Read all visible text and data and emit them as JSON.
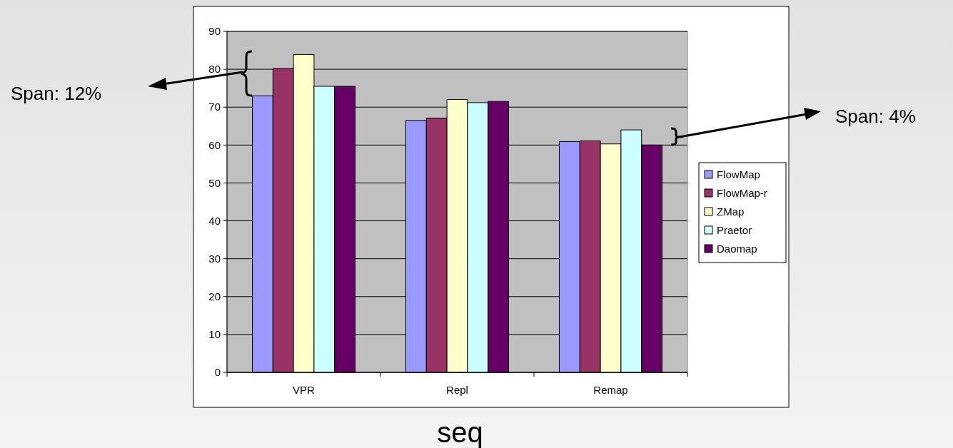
{
  "chart_data": {
    "type": "bar",
    "categories": [
      "VPR",
      "Repl",
      "Remap"
    ],
    "xlabel": "seq",
    "series": [
      {
        "name": "FlowMap",
        "color": "#9999ff",
        "values": [
          73.0,
          66.5,
          60.9
        ]
      },
      {
        "name": "FlowMap-r",
        "color": "#993366",
        "values": [
          80.2,
          67.1,
          61.1
        ]
      },
      {
        "name": "ZMap",
        "color": "#ffffcc",
        "values": [
          83.9,
          72.0,
          60.3
        ]
      },
      {
        "name": "Praetor",
        "color": "#ccffff",
        "values": [
          75.5,
          71.2,
          64.0
        ]
      },
      {
        "name": "Daomap",
        "color": "#660066",
        "values": [
          75.5,
          71.5,
          60.0
        ]
      }
    ],
    "ylim": [
      0,
      90
    ],
    "yticks": [
      0,
      10,
      20,
      30,
      40,
      50,
      60,
      70,
      80,
      90
    ],
    "grid": "y",
    "legend": "right",
    "annotations": [
      "Span: 12%",
      "Span: 4%"
    ]
  }
}
